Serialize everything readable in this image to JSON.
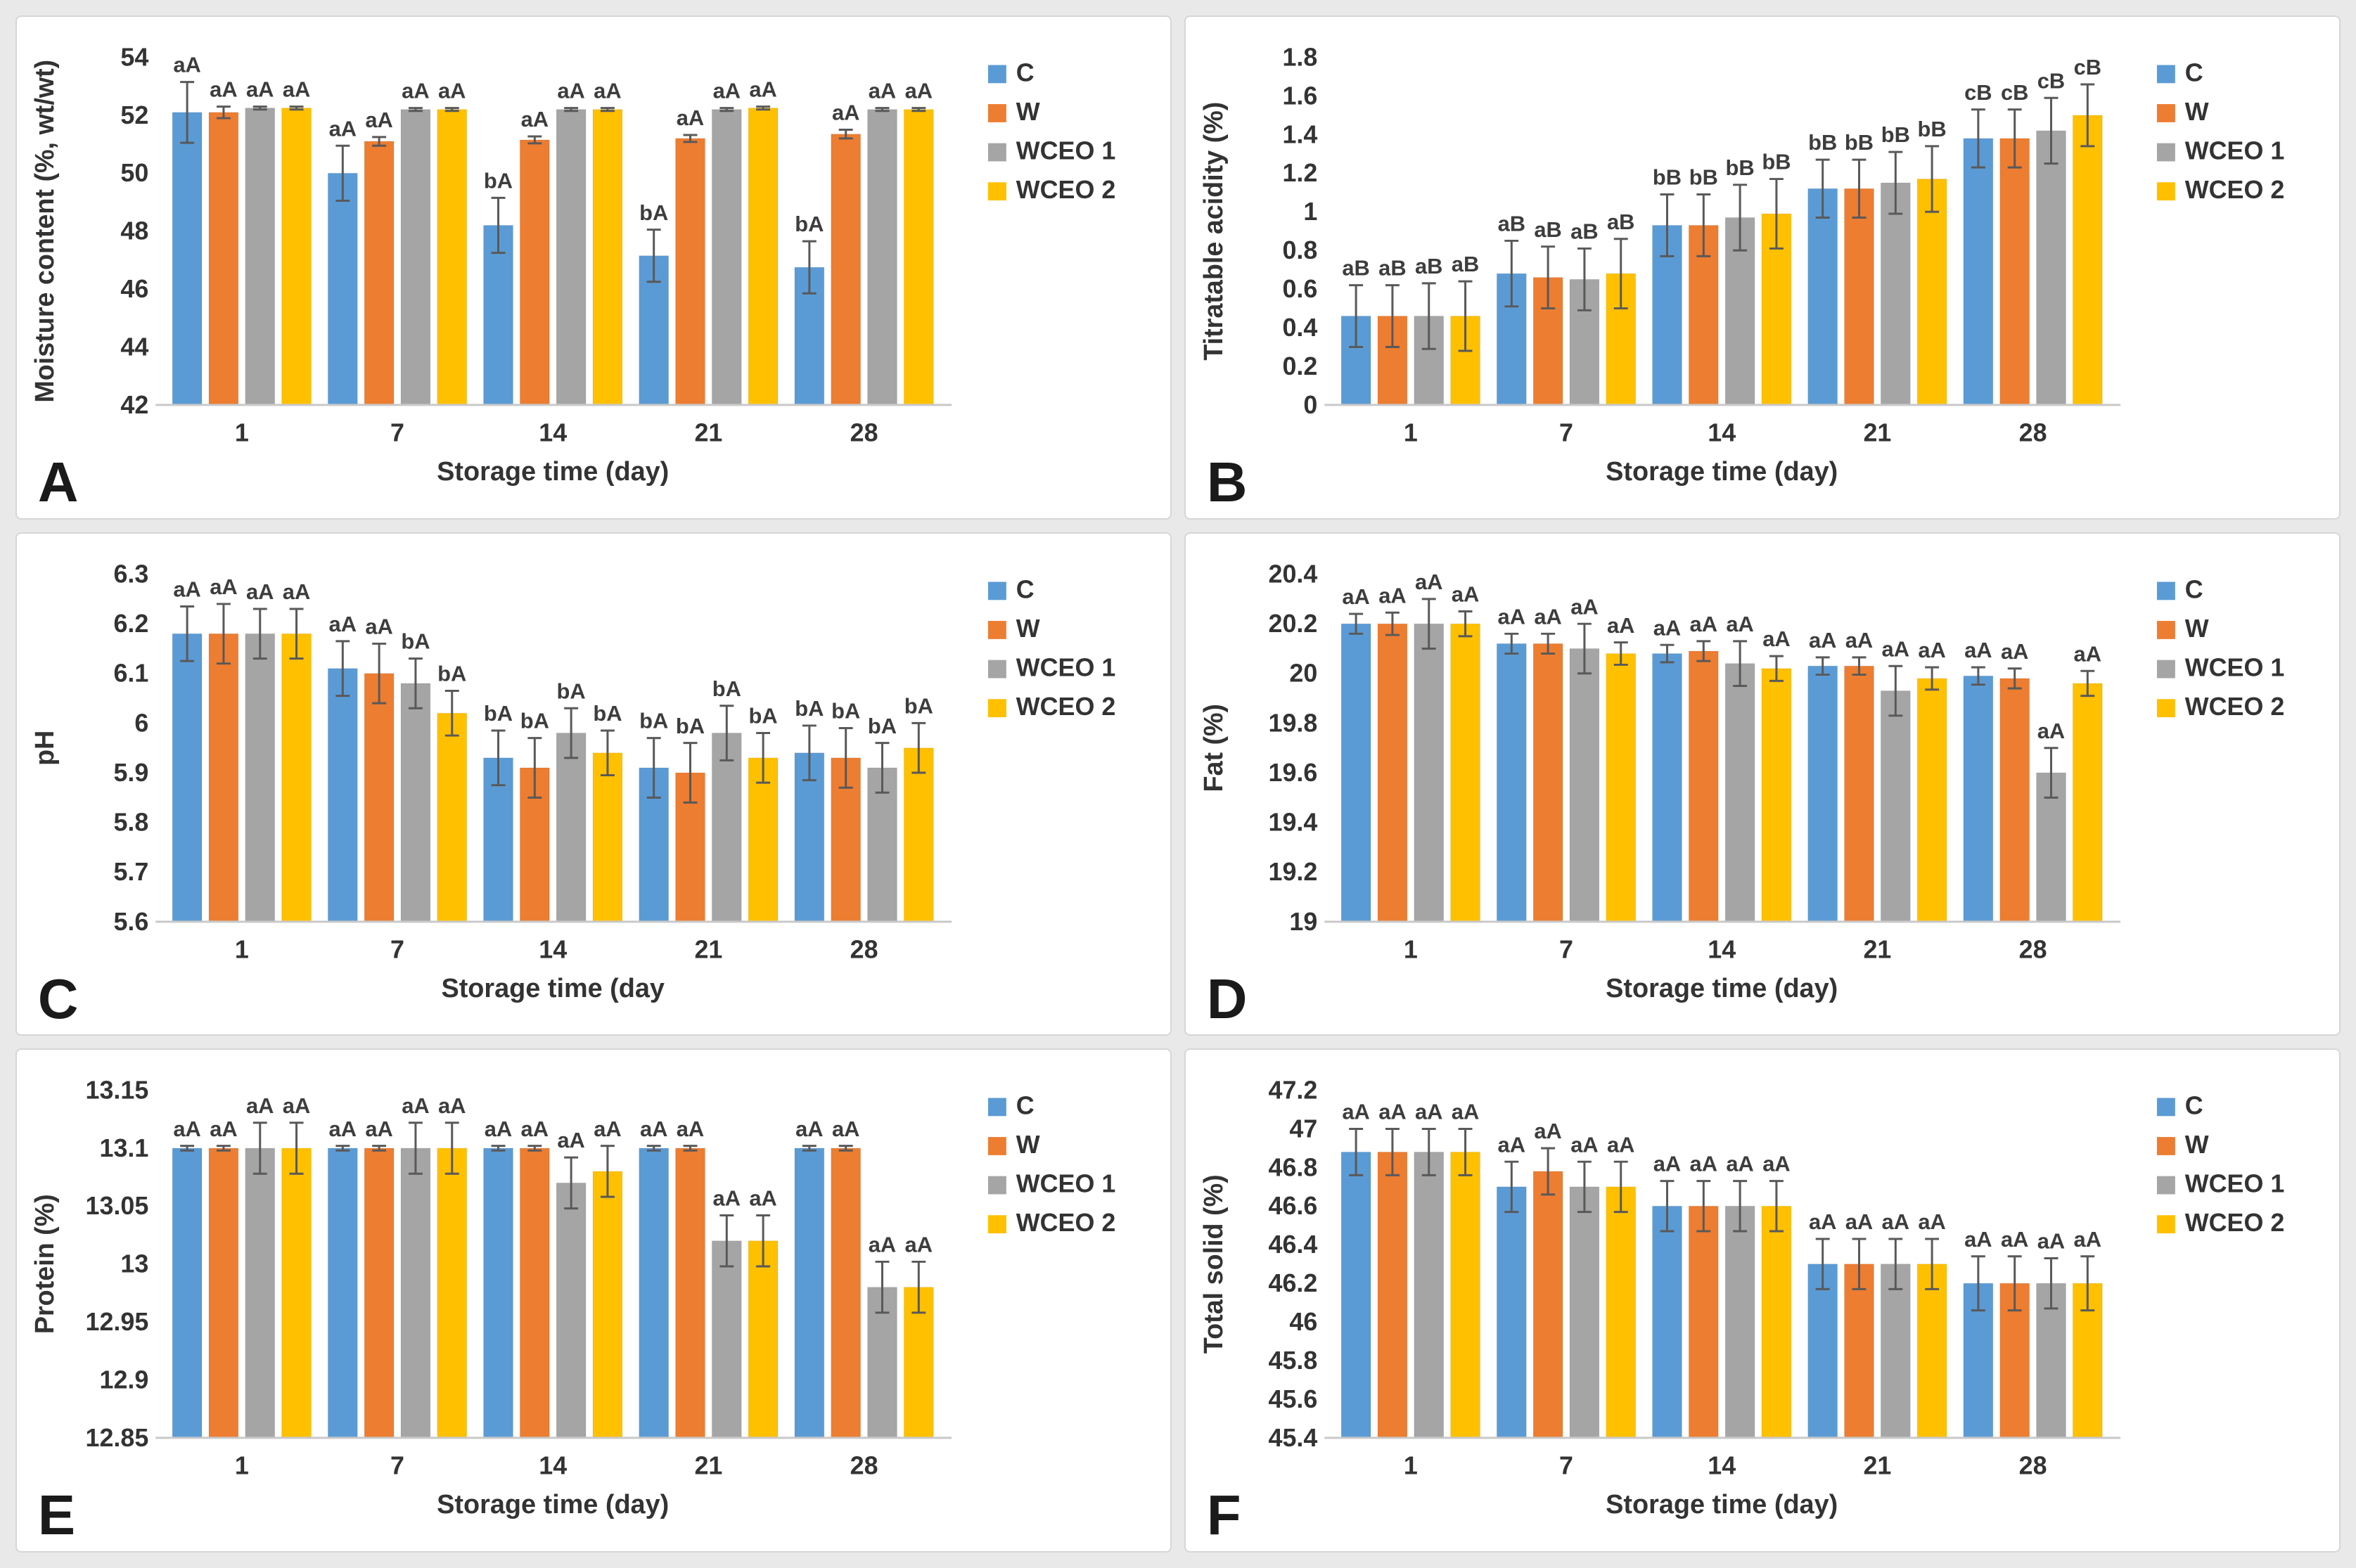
{
  "page": {
    "background": "#e9e9e9",
    "error_bar_color": "#595959"
  },
  "legend": {
    "items": [
      {
        "label": "C",
        "color": "#5B9BD5"
      },
      {
        "label": "W",
        "color": "#ED7D31"
      },
      {
        "label": "WCEO 1",
        "color": "#A5A5A5"
      },
      {
        "label": "WCEO 2",
        "color": "#FFC000"
      }
    ]
  },
  "chart_data": [
    {
      "id": "A",
      "type": "bar",
      "title": "",
      "ylabel": "Moisture content (%, wt/wt)",
      "xlabel": "Storage time (day)",
      "categories": [
        "1",
        "7",
        "14",
        "21",
        "28"
      ],
      "ylim": [
        42,
        54
      ],
      "yticks": [
        42,
        44,
        46,
        48,
        50,
        52,
        54
      ],
      "ytick_labels": [
        "42",
        "44",
        "46",
        "48",
        "50",
        "52",
        "54"
      ],
      "grid": false,
      "legend_position": "top-right",
      "series": [
        {
          "name": "C",
          "color": "#5B9BD5",
          "values": [
            52.1,
            50.0,
            48.2,
            47.15,
            46.75
          ],
          "errors": [
            1.05,
            0.95,
            0.95,
            0.9,
            0.9
          ],
          "labels": [
            "aA",
            "aA",
            "bA",
            "bA",
            "bA"
          ]
        },
        {
          "name": "W",
          "color": "#ED7D31",
          "values": [
            52.1,
            51.1,
            51.15,
            51.2,
            51.35
          ],
          "errors": [
            0.2,
            0.15,
            0.12,
            0.12,
            0.15
          ],
          "labels": [
            "aA",
            "aA",
            "aA",
            "aA",
            "aA"
          ]
        },
        {
          "name": "WCEO 1",
          "color": "#A5A5A5",
          "values": [
            52.25,
            52.2,
            52.2,
            52.2,
            52.2
          ],
          "errors": [
            0.05,
            0.05,
            0.05,
            0.05,
            0.05
          ],
          "labels": [
            "aA",
            "aA",
            "aA",
            "aA",
            "aA"
          ]
        },
        {
          "name": "WCEO 2",
          "color": "#FFC000",
          "values": [
            52.25,
            52.2,
            52.2,
            52.25,
            52.2
          ],
          "errors": [
            0.05,
            0.05,
            0.05,
            0.05,
            0.05
          ],
          "labels": [
            "aA",
            "aA",
            "aA",
            "aA",
            "aA"
          ]
        }
      ]
    },
    {
      "id": "B",
      "type": "bar",
      "title": "",
      "ylabel": "Titratable acidity (%)",
      "xlabel": "Storage time (day)",
      "categories": [
        "1",
        "7",
        "14",
        "21",
        "28"
      ],
      "ylim": [
        0,
        1.8
      ],
      "yticks": [
        0,
        0.2,
        0.4,
        0.6,
        0.8,
        1,
        1.2,
        1.4,
        1.6,
        1.8
      ],
      "ytick_labels": [
        "0",
        "0.2",
        "0.4",
        "0.6",
        "0.8",
        "1",
        "1.2",
        "1.4",
        "1.6",
        "1.8"
      ],
      "grid": false,
      "legend_position": "top-right",
      "series": [
        {
          "name": "C",
          "color": "#5B9BD5",
          "values": [
            0.46,
            0.68,
            0.93,
            1.12,
            1.38
          ],
          "errors": [
            0.16,
            0.17,
            0.16,
            0.15,
            0.15
          ],
          "labels": [
            "aB",
            "aB",
            "bB",
            "bB",
            "cB"
          ]
        },
        {
          "name": "W",
          "color": "#ED7D31",
          "values": [
            0.46,
            0.66,
            0.93,
            1.12,
            1.38
          ],
          "errors": [
            0.16,
            0.16,
            0.16,
            0.15,
            0.15
          ],
          "labels": [
            "aB",
            "aB",
            "bB",
            "bB",
            "cB"
          ]
        },
        {
          "name": "WCEO 1",
          "color": "#A5A5A5",
          "values": [
            0.46,
            0.65,
            0.97,
            1.15,
            1.42
          ],
          "errors": [
            0.17,
            0.16,
            0.17,
            0.16,
            0.17
          ],
          "labels": [
            "aB",
            "aB",
            "bB",
            "bB",
            "cB"
          ]
        },
        {
          "name": "WCEO 2",
          "color": "#FFC000",
          "values": [
            0.46,
            0.68,
            0.99,
            1.17,
            1.5
          ],
          "errors": [
            0.18,
            0.18,
            0.18,
            0.17,
            0.16
          ],
          "labels": [
            "aB",
            "aB",
            "bB",
            "bB",
            "cB"
          ]
        }
      ]
    },
    {
      "id": "C",
      "type": "bar",
      "title": "",
      "ylabel": "pH",
      "xlabel": "Storage time (day",
      "categories": [
        "1",
        "7",
        "14",
        "21",
        "28"
      ],
      "ylim": [
        5.6,
        6.3
      ],
      "yticks": [
        5.6,
        5.7,
        5.8,
        5.9,
        6,
        6.1,
        6.2,
        6.3
      ],
      "ytick_labels": [
        "5.6",
        "5.7",
        "5.8",
        "5.9",
        "6",
        "6.1",
        "6.2",
        "6.3"
      ],
      "grid": false,
      "legend_position": "top-right",
      "series": [
        {
          "name": "C",
          "color": "#5B9BD5",
          "values": [
            6.18,
            6.11,
            5.93,
            5.91,
            5.94
          ],
          "errors": [
            0.055,
            0.055,
            0.055,
            0.06,
            0.055
          ],
          "labels": [
            "aA",
            "aA",
            "bA",
            "bA",
            "bA"
          ]
        },
        {
          "name": "W",
          "color": "#ED7D31",
          "values": [
            6.18,
            6.1,
            5.91,
            5.9,
            5.93
          ],
          "errors": [
            0.06,
            0.06,
            0.06,
            0.06,
            0.06
          ],
          "labels": [
            "aA",
            "aA",
            "bA",
            "bA",
            "bA"
          ]
        },
        {
          "name": "WCEO 1",
          "color": "#A5A5A5",
          "values": [
            6.18,
            6.08,
            5.98,
            5.98,
            5.91
          ],
          "errors": [
            0.05,
            0.05,
            0.05,
            0.055,
            0.05
          ],
          "labels": [
            "aA",
            "bA",
            "bA",
            "bA",
            "bA"
          ]
        },
        {
          "name": "WCEO 2",
          "color": "#FFC000",
          "values": [
            6.18,
            6.02,
            5.94,
            5.93,
            5.95
          ],
          "errors": [
            0.05,
            0.045,
            0.045,
            0.05,
            0.05
          ],
          "labels": [
            "aA",
            "bA",
            "bA",
            "bA",
            "bA"
          ]
        }
      ]
    },
    {
      "id": "D",
      "type": "bar",
      "title": "",
      "ylabel": "Fat (%)",
      "xlabel": "Storage time (day)",
      "categories": [
        "1",
        "7",
        "14",
        "21",
        "28"
      ],
      "ylim": [
        19,
        20.4
      ],
      "yticks": [
        19,
        19.2,
        19.4,
        19.6,
        19.8,
        20,
        20.2,
        20.4
      ],
      "ytick_labels": [
        "19",
        "19.2",
        "19.4",
        "19.6",
        "19.8",
        "20",
        "20.2",
        "20.4"
      ],
      "grid": false,
      "legend_position": "top-right",
      "series": [
        {
          "name": "C",
          "color": "#5B9BD5",
          "values": [
            20.2,
            20.12,
            20.08,
            20.03,
            19.99
          ],
          "errors": [
            0.04,
            0.04,
            0.035,
            0.035,
            0.035
          ],
          "labels": [
            "aA",
            "aA",
            "aA",
            "aA",
            "aA"
          ]
        },
        {
          "name": "W",
          "color": "#ED7D31",
          "values": [
            20.2,
            20.12,
            20.09,
            20.03,
            19.98
          ],
          "errors": [
            0.045,
            0.04,
            0.04,
            0.035,
            0.04
          ],
          "labels": [
            "aA",
            "aA",
            "aA",
            "aA",
            "aA"
          ]
        },
        {
          "name": "WCEO 1",
          "color": "#A5A5A5",
          "values": [
            20.2,
            20.1,
            20.04,
            19.93,
            19.6
          ],
          "errors": [
            0.1,
            0.1,
            0.09,
            0.1,
            0.1
          ],
          "labels": [
            "aA",
            "aA",
            "aA",
            "aA",
            "aA"
          ]
        },
        {
          "name": "WCEO 2",
          "color": "#FFC000",
          "values": [
            20.2,
            20.08,
            20.02,
            19.98,
            19.96
          ],
          "errors": [
            0.05,
            0.045,
            0.05,
            0.045,
            0.05
          ],
          "labels": [
            "aA",
            "aA",
            "aA",
            "aA",
            "aA"
          ]
        }
      ]
    },
    {
      "id": "E",
      "type": "bar",
      "title": "",
      "ylabel": "Protein (%)",
      "xlabel": "Storage time (day)",
      "categories": [
        "1",
        "7",
        "14",
        "21",
        "28"
      ],
      "ylim": [
        12.85,
        13.15
      ],
      "yticks": [
        12.85,
        12.9,
        12.95,
        13,
        13.05,
        13.1,
        13.15
      ],
      "ytick_labels": [
        "12.85",
        "12.9",
        "12.95",
        "13",
        "13.05",
        "13.1",
        "13.15"
      ],
      "grid": false,
      "legend_position": "top-right",
      "series": [
        {
          "name": "C",
          "color": "#5B9BD5",
          "values": [
            13.1,
            13.1,
            13.1,
            13.1,
            13.1
          ],
          "errors": [
            0.002,
            0.002,
            0.002,
            0.002,
            0.002
          ],
          "labels": [
            "aA",
            "aA",
            "aA",
            "aA",
            "aA"
          ]
        },
        {
          "name": "W",
          "color": "#ED7D31",
          "values": [
            13.1,
            13.1,
            13.1,
            13.1,
            13.1
          ],
          "errors": [
            0.002,
            0.002,
            0.002,
            0.002,
            0.002
          ],
          "labels": [
            "aA",
            "aA",
            "aA",
            "aA",
            "aA"
          ]
        },
        {
          "name": "WCEO 1",
          "color": "#A5A5A5",
          "values": [
            13.1,
            13.1,
            13.07,
            13.02,
            12.98
          ],
          "errors": [
            0.022,
            0.022,
            0.022,
            0.022,
            0.022
          ],
          "labels": [
            "aA",
            "aA",
            "aA",
            "aA",
            "aA"
          ]
        },
        {
          "name": "WCEO 2",
          "color": "#FFC000",
          "values": [
            13.1,
            13.1,
            13.08,
            13.02,
            12.98
          ],
          "errors": [
            0.022,
            0.022,
            0.022,
            0.022,
            0.022
          ],
          "labels": [
            "aA",
            "aA",
            "aA",
            "aA",
            "aA"
          ]
        }
      ]
    },
    {
      "id": "F",
      "type": "bar",
      "title": "",
      "ylabel": "Total solid (%)",
      "xlabel": "Storage time (day)",
      "categories": [
        "1",
        "7",
        "14",
        "21",
        "28"
      ],
      "ylim": [
        45.4,
        47.2
      ],
      "yticks": [
        45.4,
        45.6,
        45.8,
        46,
        46.2,
        46.4,
        46.6,
        46.8,
        47,
        47.2
      ],
      "ytick_labels": [
        "45.4",
        "45.6",
        "45.8",
        "46",
        "46.2",
        "46.4",
        "46.6",
        "46.8",
        "47",
        "47.2"
      ],
      "grid": false,
      "legend_position": "top-right",
      "series": [
        {
          "name": "C",
          "color": "#5B9BD5",
          "values": [
            46.88,
            46.7,
            46.6,
            46.3,
            46.2
          ],
          "errors": [
            0.12,
            0.13,
            0.13,
            0.13,
            0.14
          ],
          "labels": [
            "aA",
            "aA",
            "aA",
            "aA",
            "aA"
          ]
        },
        {
          "name": "W",
          "color": "#ED7D31",
          "values": [
            46.88,
            46.78,
            46.6,
            46.3,
            46.2
          ],
          "errors": [
            0.12,
            0.12,
            0.13,
            0.13,
            0.14
          ],
          "labels": [
            "aA",
            "aA",
            "aA",
            "aA",
            "aA"
          ]
        },
        {
          "name": "WCEO 1",
          "color": "#A5A5A5",
          "values": [
            46.88,
            46.7,
            46.6,
            46.3,
            46.2
          ],
          "errors": [
            0.12,
            0.13,
            0.13,
            0.13,
            0.13
          ],
          "labels": [
            "aA",
            "aA",
            "aA",
            "aA",
            "aA"
          ]
        },
        {
          "name": "WCEO 2",
          "color": "#FFC000",
          "values": [
            46.88,
            46.7,
            46.6,
            46.3,
            46.2
          ],
          "errors": [
            0.12,
            0.13,
            0.13,
            0.13,
            0.14
          ],
          "labels": [
            "aA",
            "aA",
            "aA",
            "aA",
            "aA"
          ]
        }
      ]
    }
  ]
}
